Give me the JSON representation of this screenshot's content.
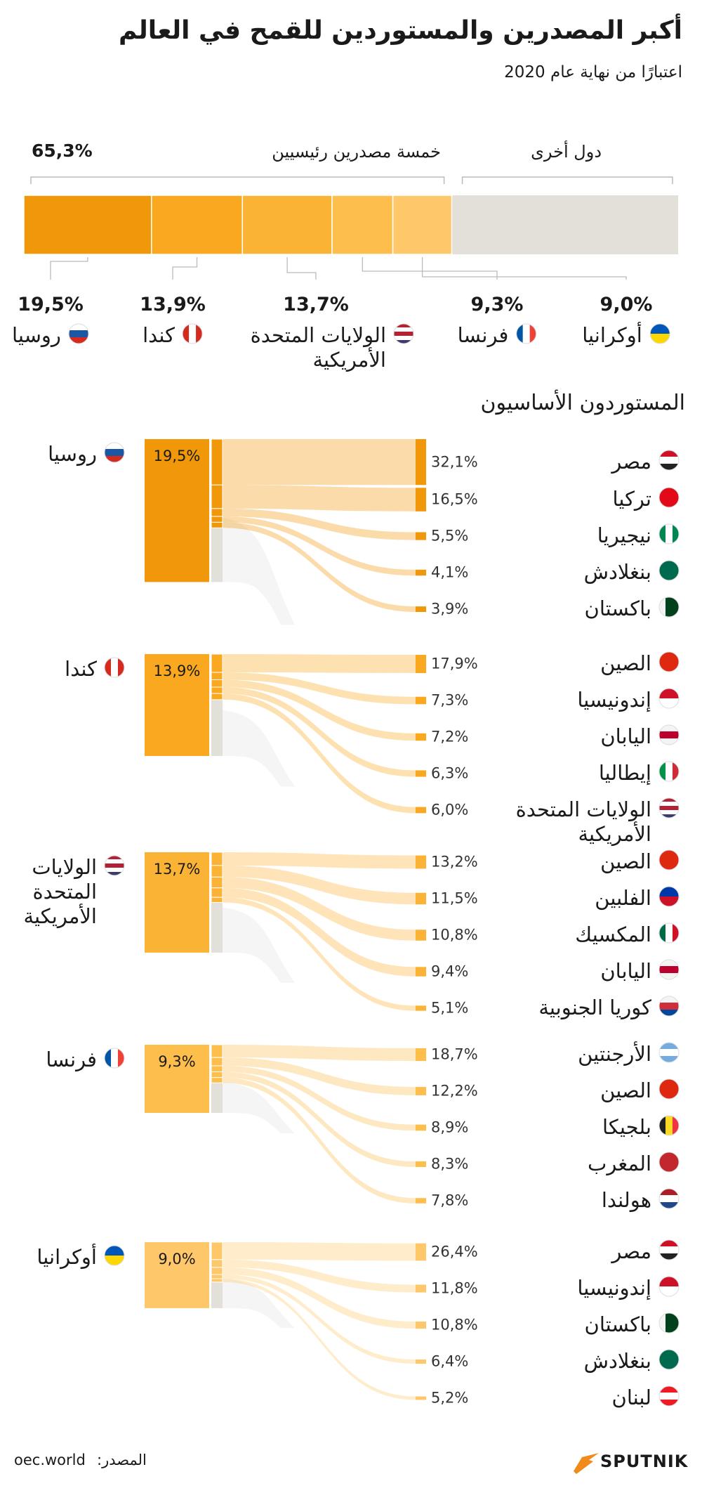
{
  "title": "أكبر المصدرين والمستوردين للقمح في العالم",
  "subtitle": "اعتبارًا من نهاية عام 2020",
  "top_bar": {
    "group_label": "خمسة مصدرين رئيسيين",
    "group_share": {
      "value": 65.3,
      "label": "65,3%"
    },
    "others_label": "دول أخرى",
    "others_color": "#e3dfd9",
    "exporters": [
      {
        "name": "روسيا",
        "share": {
          "value": 19.5,
          "label": "19,5%"
        },
        "color": "#f0980a"
      },
      {
        "name": "كندا",
        "share": {
          "value": 13.9,
          "label": "13,9%"
        },
        "color": "#f9a81f"
      },
      {
        "name": "الولايات المتحدة الأمريكية",
        "share": {
          "value": 13.7,
          "label": "13,7%"
        },
        "color": "#fbb335"
      },
      {
        "name": "فرنسا",
        "share": {
          "value": 9.3,
          "label": "9,3%"
        },
        "color": "#fdbe4c"
      },
      {
        "name": "أوكرانيا",
        "share": {
          "value": 9.0,
          "label": "9,0%"
        },
        "color": "#fec86a"
      }
    ]
  },
  "importers_title": "المستوردون الأساسيون",
  "flows": [
    {
      "exporter": "روسيا",
      "share": {
        "value": 19.5,
        "label": "19,5%"
      },
      "importers": [
        {
          "name": "مصر",
          "share": {
            "value": 32.1,
            "label": "32,1%"
          }
        },
        {
          "name": "تركيا",
          "share": {
            "value": 16.5,
            "label": "16,5%"
          }
        },
        {
          "name": "نيجيريا",
          "share": {
            "value": 5.5,
            "label": "5,5%"
          }
        },
        {
          "name": "بنغلادش",
          "share": {
            "value": 4.1,
            "label": "4,1%"
          }
        },
        {
          "name": "باكستان",
          "share": {
            "value": 3.9,
            "label": "3,9%"
          }
        }
      ]
    },
    {
      "exporter": "كندا",
      "share": {
        "value": 13.9,
        "label": "13,9%"
      },
      "importers": [
        {
          "name": "الصين",
          "share": {
            "value": 17.9,
            "label": "17,9%"
          }
        },
        {
          "name": "إندونيسيا",
          "share": {
            "value": 7.3,
            "label": "7,3%"
          }
        },
        {
          "name": "اليابان",
          "share": {
            "value": 7.2,
            "label": "7,2%"
          }
        },
        {
          "name": "إيطاليا",
          "share": {
            "value": 6.3,
            "label": "6,3%"
          }
        },
        {
          "name": "الولايات المتحدة الأمريكية",
          "share": {
            "value": 6.0,
            "label": "6,0%"
          }
        }
      ]
    },
    {
      "exporter": "الولايات المتحدة الأمريكية",
      "share": {
        "value": 13.7,
        "label": "13,7%"
      },
      "importers": [
        {
          "name": "الصين",
          "share": {
            "value": 13.2,
            "label": "13,2%"
          }
        },
        {
          "name": "الفلبين",
          "share": {
            "value": 11.5,
            "label": "11,5%"
          }
        },
        {
          "name": "المكسيك",
          "share": {
            "value": 10.8,
            "label": "10,8%"
          }
        },
        {
          "name": "اليابان",
          "share": {
            "value": 9.4,
            "label": "9,4%"
          }
        },
        {
          "name": "كوريا الجنوبية",
          "share": {
            "value": 5.1,
            "label": "5,1%"
          }
        }
      ]
    },
    {
      "exporter": "فرنسا",
      "share": {
        "value": 9.3,
        "label": "9,3%"
      },
      "importers": [
        {
          "name": "الأرجنتين",
          "share": {
            "value": 18.7,
            "label": "18,7%"
          }
        },
        {
          "name": "الصين",
          "share": {
            "value": 12.2,
            "label": "12,2%"
          }
        },
        {
          "name": "بلجيكا",
          "share": {
            "value": 8.9,
            "label": "8,9%"
          }
        },
        {
          "name": "المغرب",
          "share": {
            "value": 8.3,
            "label": "8,3%"
          }
        },
        {
          "name": "هولندا",
          "share": {
            "value": 7.8,
            "label": "7,8%"
          }
        }
      ]
    },
    {
      "exporter": "أوكرانيا",
      "share": {
        "value": 9.0,
        "label": "9,0%"
      },
      "importers": [
        {
          "name": "مصر",
          "share": {
            "value": 26.4,
            "label": "26,4%"
          }
        },
        {
          "name": "إندونيسيا",
          "share": {
            "value": 11.8,
            "label": "11,8%"
          }
        },
        {
          "name": "باكستان",
          "share": {
            "value": 10.8,
            "label": "10,8%"
          }
        },
        {
          "name": "بنغلادش",
          "share": {
            "value": 6.4,
            "label": "6,4%"
          }
        },
        {
          "name": "لبنان",
          "share": {
            "value": 5.2,
            "label": "5,2%"
          }
        }
      ]
    }
  ],
  "source_label": "المصدر:",
  "source": "oec.world",
  "brand": "SPUTNIK"
}
